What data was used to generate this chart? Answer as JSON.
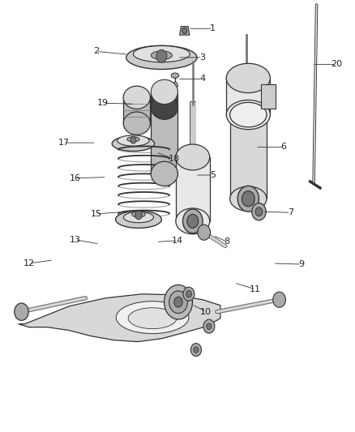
{
  "background_color": "#ffffff",
  "line_color": "#555555",
  "dark_color": "#333333",
  "light_gray": "#d8d8d8",
  "mid_gray": "#aaaaaa",
  "dark_gray": "#777777",
  "figsize": [
    4.38,
    5.33
  ],
  "dpi": 100,
  "callouts": {
    "1": [
      0.53,
      0.935,
      0.6,
      0.935
    ],
    "2": [
      0.36,
      0.875,
      0.27,
      0.882
    ],
    "3": [
      0.5,
      0.868,
      0.57,
      0.868
    ],
    "4": [
      0.5,
      0.818,
      0.57,
      0.818
    ],
    "5": [
      0.55,
      0.595,
      0.6,
      0.595
    ],
    "6": [
      0.72,
      0.66,
      0.8,
      0.66
    ],
    "7": [
      0.74,
      0.51,
      0.82,
      0.508
    ],
    "8": [
      0.6,
      0.455,
      0.64,
      0.44
    ],
    "9": [
      0.77,
      0.39,
      0.85,
      0.388
    ],
    "10": [
      0.54,
      0.295,
      0.58,
      0.278
    ],
    "11": [
      0.66,
      0.345,
      0.72,
      0.33
    ],
    "12": [
      0.15,
      0.398,
      0.08,
      0.39
    ],
    "13": [
      0.28,
      0.435,
      0.21,
      0.445
    ],
    "14": [
      0.44,
      0.44,
      0.5,
      0.443
    ],
    "15": [
      0.36,
      0.51,
      0.27,
      0.505
    ],
    "16": [
      0.3,
      0.59,
      0.21,
      0.588
    ],
    "17": [
      0.27,
      0.67,
      0.18,
      0.67
    ],
    "18": [
      0.44,
      0.648,
      0.49,
      0.632
    ],
    "19": [
      0.38,
      0.76,
      0.29,
      0.762
    ],
    "20": [
      0.88,
      0.852,
      0.95,
      0.852
    ]
  }
}
